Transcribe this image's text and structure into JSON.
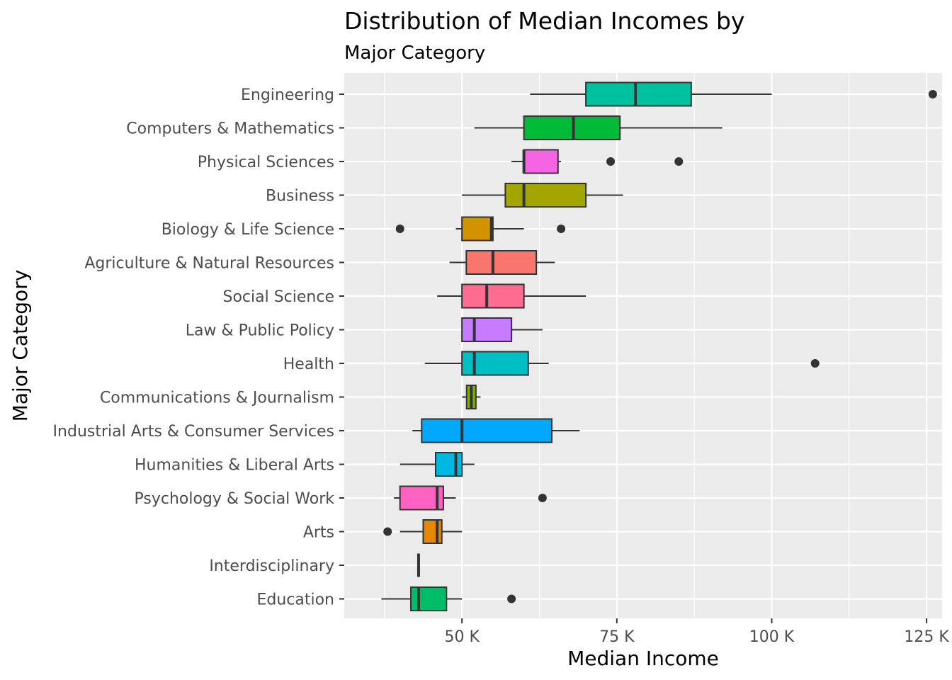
{
  "chart_data": {
    "type": "boxplot",
    "orientation": "horizontal",
    "title": "Distribution of Median Incomes by",
    "subtitle": "Major Category",
    "xlabel": "Median Income",
    "ylabel": "Major Category",
    "xlim": [
      31000,
      127500
    ],
    "x_ticks": [
      {
        "value": 50000,
        "label": "50 K"
      },
      {
        "value": 75000,
        "label": "75 K"
      },
      {
        "value": 100000,
        "label": "100 K"
      },
      {
        "value": 125000,
        "label": "125 K"
      }
    ],
    "x_minor_ticks": [
      37500,
      62500,
      87500,
      112500
    ],
    "grid": true,
    "legend": "none",
    "categories": [
      {
        "name": "Engineering",
        "color": "#00C19F",
        "whisker_low": 61000,
        "q1": 70000,
        "median": 78000,
        "q3": 87000,
        "whisker_high": 100000,
        "outliers": [
          126000
        ]
      },
      {
        "name": "Computers & Mathematics",
        "color": "#00BA38",
        "whisker_low": 52000,
        "q1": 60000,
        "median": 68000,
        "q3": 75500,
        "whisker_high": 92000,
        "outliers": []
      },
      {
        "name": "Physical Sciences",
        "color": "#F564E3",
        "whisker_low": 58000,
        "q1": 60000,
        "median": 60000,
        "q3": 65500,
        "whisker_high": 66000,
        "outliers": [
          74000,
          85000
        ]
      },
      {
        "name": "Business",
        "color": "#A3A500",
        "whisker_low": 50000,
        "q1": 57000,
        "median": 60000,
        "q3": 70000,
        "whisker_high": 76000,
        "outliers": []
      },
      {
        "name": "Biology & Life Science",
        "color": "#D39200",
        "whisker_low": 49000,
        "q1": 50000,
        "median": 54750,
        "q3": 55000,
        "whisker_high": 60000,
        "outliers": [
          40000,
          66000
        ]
      },
      {
        "name": "Agriculture & Natural Resources",
        "color": "#F8766D",
        "whisker_low": 48000,
        "q1": 50700,
        "median": 55000,
        "q3": 62000,
        "whisker_high": 65000,
        "outliers": []
      },
      {
        "name": "Social Science",
        "color": "#FF6C91",
        "whisker_low": 46000,
        "q1": 50000,
        "median": 54000,
        "q3": 60000,
        "whisker_high": 70000,
        "outliers": []
      },
      {
        "name": "Law & Public Policy",
        "color": "#C77CFF",
        "whisker_low": 50000,
        "q1": 50000,
        "median": 52000,
        "q3": 58000,
        "whisker_high": 63000,
        "outliers": []
      },
      {
        "name": "Health",
        "color": "#00BFC4",
        "whisker_low": 44000,
        "q1": 50000,
        "median": 52000,
        "q3": 60700,
        "whisker_high": 64000,
        "outliers": [
          107000
        ]
      },
      {
        "name": "Communications & Journalism",
        "color": "#7CAE00",
        "whisker_low": 50000,
        "q1": 50750,
        "median": 51500,
        "q3": 52250,
        "whisker_high": 53000,
        "outliers": []
      },
      {
        "name": "Industrial Arts & Consumer Services",
        "color": "#00A9FF",
        "whisker_low": 42000,
        "q1": 43500,
        "median": 50000,
        "q3": 64500,
        "whisker_high": 69000,
        "outliers": []
      },
      {
        "name": "Humanities & Liberal Arts",
        "color": "#00B9E3",
        "whisker_low": 40000,
        "q1": 45750,
        "median": 49000,
        "q3": 50000,
        "whisker_high": 52000,
        "outliers": []
      },
      {
        "name": "Psychology & Social Work",
        "color": "#FF61C3",
        "whisker_low": 39000,
        "q1": 40000,
        "median": 46000,
        "q3": 47000,
        "whisker_high": 49000,
        "outliers": [
          63000
        ]
      },
      {
        "name": "Arts",
        "color": "#E58700",
        "whisker_low": 40000,
        "q1": 43750,
        "median": 46000,
        "q3": 46750,
        "whisker_high": 50000,
        "outliers": [
          38000
        ]
      },
      {
        "name": "Interdisciplinary",
        "color": "#619CFF",
        "whisker_low": 43000,
        "q1": 43000,
        "median": 43000,
        "q3": 43000,
        "whisker_high": 43000,
        "outliers": []
      },
      {
        "name": "Education",
        "color": "#00BE67",
        "whisker_low": 37000,
        "q1": 41750,
        "median": 43000,
        "q3": 47500,
        "whisker_high": 50000,
        "outliers": [
          58000
        ]
      }
    ]
  }
}
